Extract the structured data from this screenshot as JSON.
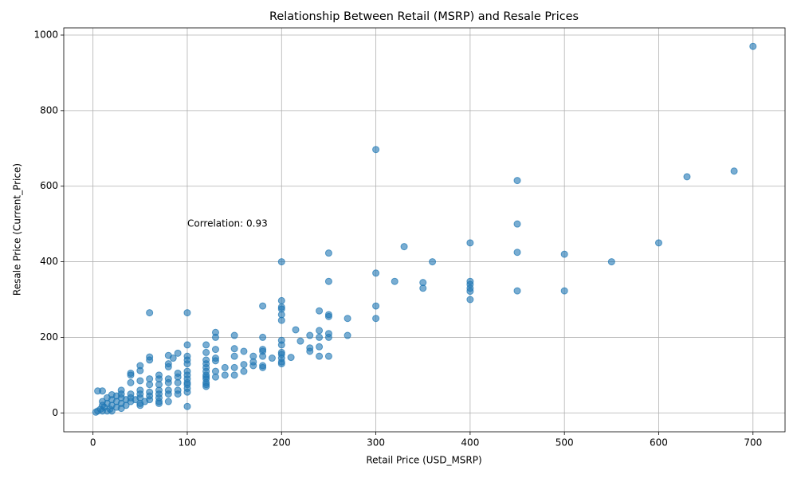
{
  "chart_data": {
    "type": "scatter",
    "title": "Relationship Between Retail (MSRP) and Resale Prices",
    "x_label": "Retail Price (USD_MSRP)",
    "y_label": "Resale Price (Current_Price)",
    "annotation": {
      "text": "Correlation: 0.93",
      "x": 100,
      "y": 500
    },
    "color": "#1f77b4",
    "grid": true,
    "xlim": [
      -31,
      734
    ],
    "ylim": [
      -50,
      1019
    ],
    "xticks": [
      0,
      100,
      200,
      300,
      400,
      500,
      600,
      700
    ],
    "yticks": [
      0,
      200,
      400,
      600,
      800,
      1000
    ],
    "x": [
      700,
      300,
      450,
      630,
      680,
      450,
      400,
      600,
      330,
      250,
      450,
      500,
      200,
      360,
      550,
      300,
      250,
      320,
      350,
      400,
      400,
      350,
      400,
      400,
      450,
      500,
      400,
      200,
      200,
      200,
      180,
      300,
      240,
      60,
      100,
      200,
      250,
      250,
      270,
      300,
      200,
      215,
      240,
      130,
      250,
      150,
      230,
      270,
      130,
      180,
      240,
      250,
      200,
      220,
      100,
      120,
      200,
      240,
      150,
      130,
      180,
      230,
      160,
      180,
      230,
      120,
      200,
      90,
      200,
      80,
      60,
      100,
      150,
      170,
      180,
      240,
      250,
      210,
      190,
      85,
      130,
      200,
      60,
      100,
      120,
      130,
      170,
      200,
      80,
      100,
      120,
      160,
      170,
      180,
      200,
      50,
      80,
      120,
      140,
      150,
      180,
      50,
      40,
      100,
      120,
      130,
      160,
      90,
      70,
      100,
      120,
      140,
      150,
      40,
      90,
      120,
      130,
      80,
      60,
      70,
      100,
      120,
      50,
      40,
      80,
      90,
      100,
      120,
      30,
      5,
      10,
      60,
      70,
      100,
      120,
      120,
      100,
      80,
      90,
      70,
      50,
      60,
      100,
      40,
      50,
      70,
      80,
      90,
      25,
      30,
      20,
      60,
      15,
      30,
      40,
      50,
      70,
      20,
      35,
      45,
      60,
      10,
      25,
      40,
      55,
      70,
      80,
      15,
      30,
      50,
      70,
      10,
      20,
      35,
      50,
      12,
      25,
      30,
      8,
      18,
      5,
      10,
      3,
      15,
      20,
      100
    ],
    "y": [
      970,
      697,
      615,
      625,
      640,
      500,
      450,
      450,
      440,
      423,
      425,
      420,
      400,
      400,
      400,
      370,
      348,
      348,
      345,
      348,
      340,
      330,
      330,
      322,
      323,
      323,
      300,
      297,
      280,
      275,
      283,
      283,
      270,
      265,
      265,
      260,
      260,
      255,
      250,
      250,
      245,
      220,
      218,
      213,
      210,
      205,
      205,
      205,
      200,
      200,
      200,
      200,
      192,
      190,
      180,
      180,
      180,
      175,
      170,
      168,
      168,
      172,
      163,
      163,
      163,
      160,
      160,
      158,
      155,
      152,
      148,
      150,
      150,
      150,
      150,
      150,
      150,
      147,
      145,
      145,
      145,
      145,
      140,
      140,
      140,
      138,
      135,
      135,
      130,
      130,
      130,
      128,
      125,
      125,
      130,
      125,
      122,
      120,
      120,
      120,
      120,
      112,
      105,
      110,
      110,
      110,
      110,
      105,
      100,
      100,
      100,
      100,
      100,
      100,
      95,
      95,
      95,
      90,
      90,
      90,
      90,
      90,
      85,
      80,
      80,
      80,
      80,
      80,
      60,
      58,
      58,
      75,
      75,
      75,
      75,
      70,
      65,
      60,
      60,
      60,
      60,
      55,
      55,
      50,
      50,
      50,
      50,
      50,
      45,
      50,
      48,
      45,
      40,
      40,
      40,
      40,
      40,
      35,
      35,
      35,
      35,
      30,
      30,
      30,
      30,
      30,
      30,
      25,
      25,
      25,
      25,
      20,
      20,
      20,
      20,
      15,
      15,
      12,
      10,
      10,
      5,
      5,
      2,
      5,
      5,
      17
    ]
  }
}
